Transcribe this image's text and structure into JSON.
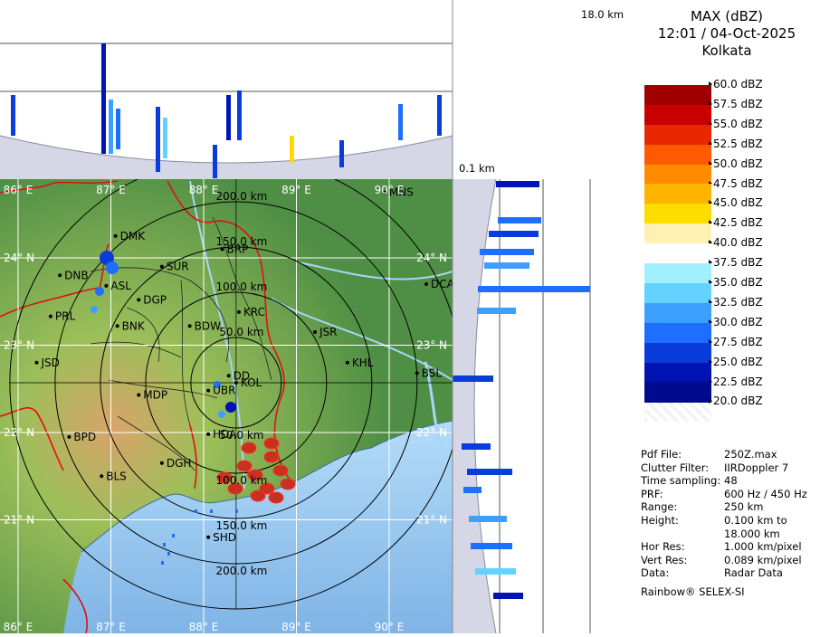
{
  "title": {
    "product": "MAX (dBZ)",
    "datetime": "12:01 / 04-Oct-2025",
    "station": "Kolkata"
  },
  "height_labels": {
    "top": "18.0 km",
    "bottom": "0.1 km"
  },
  "legend": [
    {
      "label": "60.0 dBZ",
      "color": "#ffffff"
    },
    {
      "label": "57.5 dBZ",
      "color": "#a00000"
    },
    {
      "label": "55.0 dBZ",
      "color": "#c80000"
    },
    {
      "label": "52.5 dBZ",
      "color": "#e82800"
    },
    {
      "label": "50.0 dBZ",
      "color": "#ff5a00"
    },
    {
      "label": "47.5 dBZ",
      "color": "#ff8c00"
    },
    {
      "label": "45.0 dBZ",
      "color": "#ffb400"
    },
    {
      "label": "42.5 dBZ",
      "color": "#ffdc00"
    },
    {
      "label": "40.0 dBZ",
      "color": "#fff0b4"
    },
    {
      "label": "37.5 dBZ",
      "color": "#ffffff"
    },
    {
      "label": "35.0 dBZ",
      "color": "#a0f0ff"
    },
    {
      "label": "32.5 dBZ",
      "color": "#64d2ff"
    },
    {
      "label": "30.0 dBZ",
      "color": "#3ca0ff"
    },
    {
      "label": "27.5 dBZ",
      "color": "#1e6eff"
    },
    {
      "label": "25.0 dBZ",
      "color": "#0a3cdc"
    },
    {
      "label": "22.5 dBZ",
      "color": "#0014b4"
    },
    {
      "label": "20.0 dBZ",
      "color": "#000a8c"
    }
  ],
  "info": [
    {
      "key": "Pdf File:",
      "value": "250Z.max"
    },
    {
      "key": "Clutter Filter:",
      "value": "IIRDoppler 7"
    },
    {
      "key": "Time sampling:",
      "value": "48"
    },
    {
      "key": "PRF:",
      "value": "600 Hz / 450 Hz"
    },
    {
      "key": "Range:",
      "value": "250 km"
    },
    {
      "key": "Height:",
      "value": "0.100 km to"
    },
    {
      "key": "",
      "value": "18.000 km"
    },
    {
      "key": "Hor Res:",
      "value": "1.000 km/pixel"
    },
    {
      "key": "Vert Res:",
      "value": "0.089 km/pixel"
    },
    {
      "key": "Data:",
      "value": "Radar Data"
    }
  ],
  "footer": "Rainbow® SELEX-SI",
  "lon_labels": [
    "86° E",
    "87° E",
    "88° E",
    "89° E",
    "90° E"
  ],
  "lat_labels": [
    "24° N",
    "23° N",
    "22° N",
    "21° N"
  ],
  "range_labels": [
    "50.0 km",
    "100.0 km",
    "150.0 km",
    "200.0 km"
  ],
  "towns": [
    {
      "name": "DMK",
      "lon": 87.05,
      "lat": 24.25
    },
    {
      "name": "DNB",
      "lon": 86.45,
      "lat": 23.8
    },
    {
      "name": "SUR",
      "lon": 87.55,
      "lat": 23.9
    },
    {
      "name": "BRP",
      "lon": 88.2,
      "lat": 24.1
    },
    {
      "name": "MNS",
      "lon": 89.95,
      "lat": 24.75
    },
    {
      "name": "ASL",
      "lon": 86.95,
      "lat": 23.68
    },
    {
      "name": "DGP",
      "lon": 87.3,
      "lat": 23.52
    },
    {
      "name": "DCA",
      "lon": 90.4,
      "lat": 23.7
    },
    {
      "name": "KRC",
      "lon": 88.38,
      "lat": 23.38
    },
    {
      "name": "PRL",
      "lon": 86.35,
      "lat": 23.33
    },
    {
      "name": "BNK",
      "lon": 87.07,
      "lat": 23.22
    },
    {
      "name": "BDW",
      "lon": 87.85,
      "lat": 23.22
    },
    {
      "name": "JSR",
      "lon": 89.2,
      "lat": 23.15
    },
    {
      "name": "KHL",
      "lon": 89.55,
      "lat": 22.8
    },
    {
      "name": "JSD",
      "lon": 86.2,
      "lat": 22.8
    },
    {
      "name": "BSL",
      "lon": 90.3,
      "lat": 22.68
    },
    {
      "name": "DD",
      "lon": 88.27,
      "lat": 22.65
    },
    {
      "name": "KOL",
      "lon": 88.35,
      "lat": 22.57
    },
    {
      "name": "MDP",
      "lon": 87.3,
      "lat": 22.43
    },
    {
      "name": "UBR",
      "lon": 88.05,
      "lat": 22.48
    },
    {
      "name": "BPD",
      "lon": 86.55,
      "lat": 21.95
    },
    {
      "name": "HDA",
      "lon": 88.05,
      "lat": 21.98
    },
    {
      "name": "DGH",
      "lon": 87.55,
      "lat": 21.65
    },
    {
      "name": "BLS",
      "lon": 86.9,
      "lat": 21.5
    },
    {
      "name": "SHD",
      "lon": 88.05,
      "lat": 20.8
    }
  ],
  "radar": {
    "name": "Kolkata",
    "lon": 88.35,
    "lat": 22.57
  },
  "colors": {
    "land_low": "#3f8a3f",
    "land_mid": "#7ab54a",
    "land_high": "#d29a5a",
    "sea": "#a8d6f6",
    "sea_deep": "#7eb8ea",
    "river": "#a8d6f6",
    "grid": "#ffffff",
    "ring": "#000000",
    "border": "#e01010",
    "district": "#222222",
    "section_bg": "#d6d7e6",
    "section_panel": "#ffffff"
  }
}
